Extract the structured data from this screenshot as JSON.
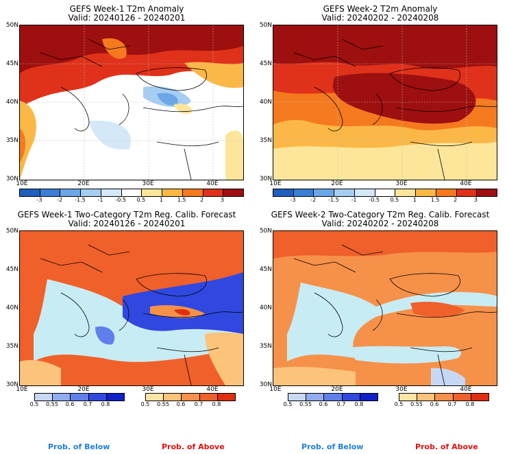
{
  "panels": [
    {
      "title": "GEFS Week-1 T2m Anomaly",
      "valid": "Valid: 20240126 - 20240201"
    },
    {
      "title": "GEFS Week-2 T2m Anomaly",
      "valid": "Valid: 20240202 - 20240208"
    },
    {
      "title": "GEFS Week-1 Two-Category T2m Reg. Calib. Forecast",
      "valid": "Valid: 20240126 - 20240201"
    },
    {
      "title": "GEFS Week-2 Two-Category T2m Reg. Calib. Forecast",
      "valid": "Valid: 20240202 - 20240208"
    }
  ],
  "lat_ticks": [
    "50N",
    "45N",
    "40N",
    "35N",
    "30N"
  ],
  "lon_ticks": [
    "10E",
    "20E",
    "30E",
    "40E"
  ],
  "anomaly_colorbar": {
    "labels": [
      "-3",
      "-2",
      "-1.5",
      "-1",
      "-0.5",
      "0.5",
      "1",
      "1.5",
      "2",
      "3"
    ],
    "colors": [
      "#1f5fbf",
      "#3a7fd5",
      "#6aa6e8",
      "#a6cdf2",
      "#d4e8f7",
      "#ffffff",
      "#fde69a",
      "#fbb846",
      "#f57a1f",
      "#e0311a",
      "#9e0f0f"
    ]
  },
  "prob_colorbar": {
    "below_labels": [
      "0.5",
      "0.55",
      "0.6",
      "0.7",
      "0.8"
    ],
    "below_colors": [
      "#c6d8f4",
      "#91adf0",
      "#5f80ea",
      "#3048e0",
      "#1020c8"
    ],
    "above_labels": [
      "0.5",
      "0.55",
      "0.6",
      "0.7",
      "0.8"
    ],
    "above_colors": [
      "#fde5a6",
      "#fbc47a",
      "#f6914a",
      "#f0602a",
      "#e02e10"
    ],
    "below_title": "Prob. of Below",
    "above_title": "Prob. of Above",
    "below_color": "#1e7fe0",
    "above_color": "#e01010"
  }
}
